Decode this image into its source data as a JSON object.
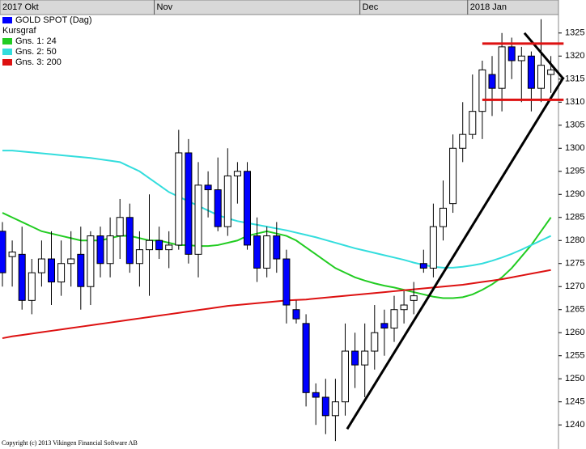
{
  "chart_data": {
    "type": "candlestick",
    "title": "GOLD SPOT (Dag)",
    "subtitle": "Kursgraf",
    "footer": "Copyright (c) 2013 Vikingen Financial Software AB",
    "categories": [
      "2017 Okt",
      null,
      null,
      null,
      null,
      null,
      null,
      null,
      null,
      null,
      null,
      null,
      null,
      null,
      null,
      null,
      "Nov",
      null,
      null,
      null,
      null,
      null,
      null,
      null,
      null,
      null,
      null,
      null,
      null,
      null,
      null,
      null,
      null,
      null,
      null,
      null,
      null,
      "Dec",
      null,
      null,
      null,
      null,
      null,
      null,
      null,
      null,
      null,
      null,
      "2018 Jan",
      null,
      null,
      null,
      null,
      null,
      null,
      null,
      null
    ],
    "series": [
      {
        "name": "GOLD SPOT (Dag)",
        "color": "#0000ff",
        "up_color": "#ffffff",
        "open": [
          1282,
          1276.5,
          1277,
          1267,
          1273,
          1276,
          1271,
          1275,
          1277,
          1270,
          1281,
          1275,
          1281,
          1285,
          1275,
          1278,
          1280,
          1278,
          1279,
          1299,
          1277,
          1292,
          1291,
          1283,
          1294,
          1295,
          1281,
          1274,
          1281,
          1276,
          1265,
          1262,
          1247,
          1246,
          1242,
          1245,
          1256,
          1253,
          1256,
          1262,
          1261,
          1265,
          1267,
          1275,
          1274,
          1283,
          1288,
          1300,
          1303,
          1308,
          1316,
          1313,
          1322,
          1319,
          1320,
          1313,
          1316
        ],
        "high": [
          1284,
          1280,
          1283,
          1276,
          1280,
          1282,
          1280,
          1282,
          1283,
          1282,
          1283,
          1285,
          1289,
          1288,
          1282,
          1290,
          1283,
          1282,
          1304,
          1302,
          1297,
          1295,
          1298,
          1300,
          1297,
          1297,
          1285,
          1283,
          1284,
          1278,
          1267,
          1264,
          1249,
          1250,
          1250,
          1262,
          1260,
          1262,
          1266,
          1265,
          1268,
          1269,
          1271,
          1278,
          1288,
          1293,
          1303,
          1310,
          1316,
          1319,
          1320,
          1325,
          1324,
          1322,
          1321,
          1328,
          1320
        ],
        "low": [
          1270,
          1270,
          1265,
          1264,
          1270,
          1266,
          1268,
          1270,
          1265,
          1266,
          1272,
          1272,
          1276,
          1273,
          1270,
          1268,
          1276,
          1274,
          1278,
          1275,
          1272,
          1285,
          1282,
          1281,
          1288,
          1278,
          1271,
          1272,
          1273,
          1262,
          1262,
          1244,
          1240,
          1238,
          1236.5,
          1242,
          1248,
          1246,
          1252,
          1255,
          1258,
          1262,
          1264,
          1273,
          1272,
          1280,
          1286,
          1297,
          1302,
          1302,
          1307,
          1308,
          1315,
          1310,
          1308,
          1310,
          1312
        ],
        "close": [
          1273,
          1277.5,
          1267,
          1273,
          1276,
          1271,
          1275,
          1276,
          1270,
          1281,
          1275,
          1281,
          1285,
          1275,
          1278,
          1280,
          1278,
          1279,
          1299,
          1277,
          1292,
          1291,
          1283,
          1294,
          1295,
          1279,
          1274,
          1281,
          1276,
          1266,
          1263,
          1247,
          1246,
          1242,
          1245,
          1256,
          1253,
          1256,
          1260,
          1261,
          1265,
          1266,
          1268,
          1274,
          1283,
          1287,
          1300,
          1303,
          1308,
          1317,
          1313,
          1322,
          1319,
          1320,
          1313,
          1318,
          1317
        ]
      },
      {
        "name": "Gns. 1: 24",
        "color": "#22cc22",
        "values": [
          1286,
          1285,
          1284,
          1283,
          1282,
          1281.5,
          1281,
          1280.5,
          1280,
          1280,
          1280,
          1280.5,
          1281,
          1281,
          1280.5,
          1280,
          1280,
          1279.5,
          1279,
          1279,
          1278.8,
          1278.8,
          1279,
          1279.5,
          1280,
          1281,
          1281.5,
          1282,
          1281.5,
          1281,
          1280,
          1278.5,
          1277,
          1275.5,
          1274,
          1273,
          1272,
          1271.3,
          1270.7,
          1270.2,
          1269.8,
          1269.3,
          1268.8,
          1268.3,
          1267.8,
          1267.5,
          1267.5,
          1267.7,
          1268.3,
          1269.3,
          1270.5,
          1272,
          1274,
          1276.5,
          1279,
          1282,
          1285
        ]
      },
      {
        "name": "Gns. 2: 50",
        "color": "#33dddd",
        "values": [
          1299.5,
          1299.5,
          1299.3,
          1299.1,
          1298.9,
          1298.7,
          1298.5,
          1298.3,
          1298.1,
          1297.9,
          1297.6,
          1297.3,
          1297,
          1296,
          1295,
          1293.5,
          1292,
          1290.5,
          1289.5,
          1288.5,
          1287.5,
          1286.5,
          1285.5,
          1284.8,
          1284.2,
          1283.8,
          1283.4,
          1283,
          1282.6,
          1282.2,
          1281.7,
          1281.2,
          1280.7,
          1280.1,
          1279.5,
          1278.9,
          1278.3,
          1277.8,
          1277.3,
          1276.8,
          1276.3,
          1275.8,
          1275.2,
          1274.7,
          1274.3,
          1274.1,
          1274.1,
          1274.3,
          1274.6,
          1275,
          1275.6,
          1276.3,
          1277.1,
          1278,
          1279,
          1280,
          1281
        ]
      },
      {
        "name": "Gns. 3: 200",
        "color": "#dd1111",
        "values": [
          1258.8,
          1259.2,
          1259.5,
          1259.8,
          1260.1,
          1260.4,
          1260.7,
          1261,
          1261.3,
          1261.6,
          1261.9,
          1262.2,
          1262.5,
          1262.8,
          1263.1,
          1263.4,
          1263.7,
          1264,
          1264.3,
          1264.6,
          1264.9,
          1265.2,
          1265.5,
          1265.8,
          1266,
          1266.2,
          1266.4,
          1266.6,
          1266.8,
          1267,
          1267.1,
          1267.2,
          1267.4,
          1267.6,
          1267.8,
          1268,
          1268.2,
          1268.4,
          1268.6,
          1268.8,
          1269,
          1269.2,
          1269.4,
          1269.6,
          1269.8,
          1270,
          1270.2,
          1270.4,
          1270.7,
          1271,
          1271.3,
          1271.6,
          1272,
          1272.4,
          1272.8,
          1273.2,
          1273.6
        ]
      }
    ],
    "trendlines": [
      {
        "color": "#000000",
        "x": [
          35.2,
          57.3
        ],
        "values": [
          1239.1,
          1315.4
        ]
      },
      {
        "color": "#000000",
        "x": [
          53.3,
          57.3
        ],
        "values": [
          1325,
          1315
        ]
      },
      {
        "color": "#dd1111",
        "x": [
          49,
          57.3
        ],
        "values": [
          1322.7,
          1322.7
        ]
      },
      {
        "color": "#dd1111",
        "x": [
          49,
          57.3
        ],
        "values": [
          1310.5,
          1310.5
        ]
      }
    ],
    "ylim": [
      1236,
      1329
    ],
    "yticks": [
      1240,
      1245,
      1250,
      1255,
      1260,
      1265,
      1270,
      1275,
      1280,
      1285,
      1290,
      1295,
      1300,
      1305,
      1310,
      1315,
      1320,
      1325
    ]
  }
}
